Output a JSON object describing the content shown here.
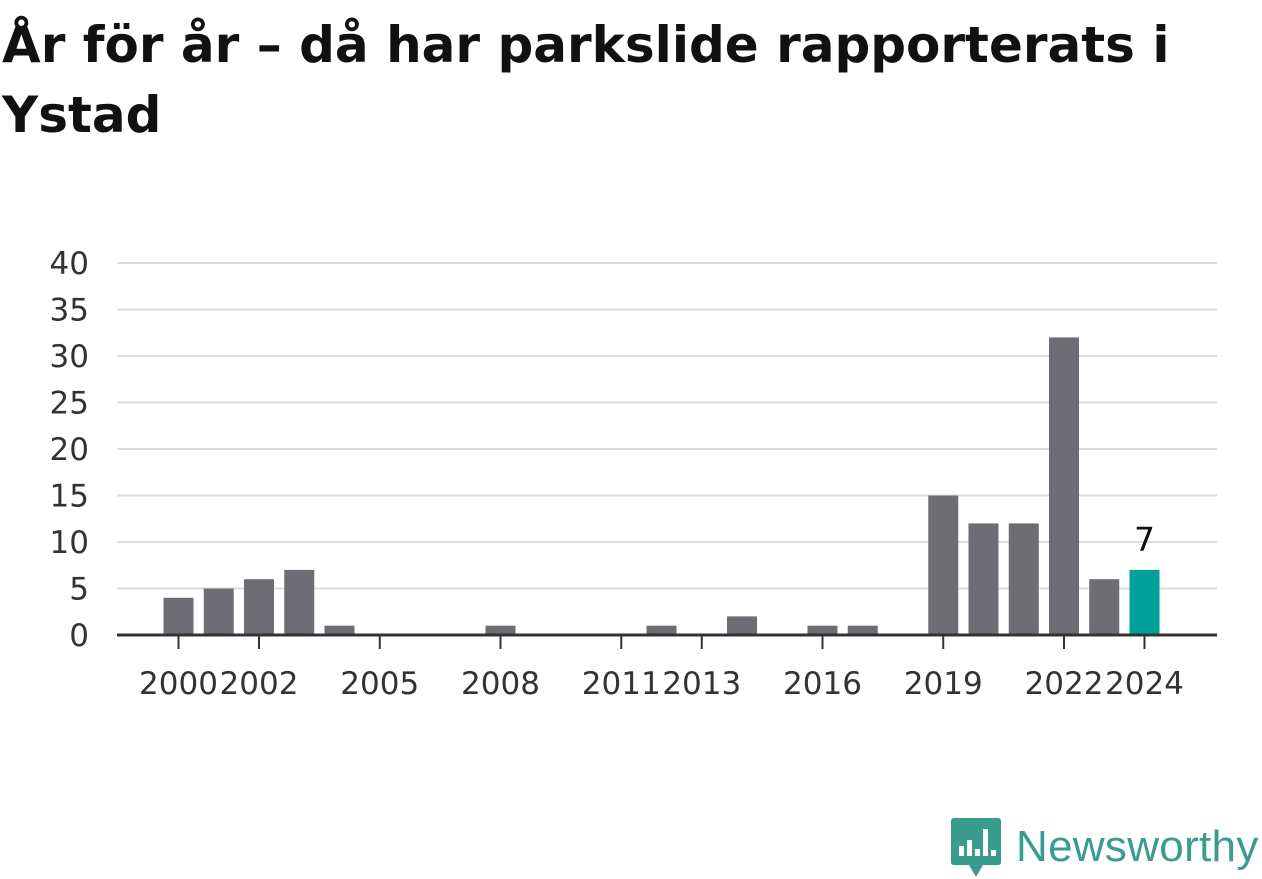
{
  "title": "År för år – då har parkslide rapporterats i Ystad",
  "brand": "Newsworthy",
  "colors": {
    "bar": "#6e6d73",
    "highlight": "#00a199",
    "grid": "#dddddd",
    "axis": "#333333",
    "text": "#333333",
    "brand": "#3a9c8f"
  },
  "chart_data": {
    "type": "bar",
    "title": "År för år – då har parkslide rapporterats i Ystad",
    "xlabel": "",
    "ylabel": "",
    "ylim": [
      0,
      40
    ],
    "yticks": [
      0,
      5,
      10,
      15,
      20,
      25,
      30,
      35,
      40
    ],
    "grid": true,
    "categories": [
      2000,
      2001,
      2002,
      2003,
      2004,
      2005,
      2006,
      2007,
      2008,
      2009,
      2010,
      2011,
      2012,
      2013,
      2014,
      2015,
      2016,
      2017,
      2018,
      2019,
      2020,
      2021,
      2022,
      2023,
      2024
    ],
    "values": [
      4,
      5,
      6,
      7,
      1,
      0,
      0,
      0,
      1,
      0,
      0,
      0,
      1,
      0,
      2,
      0,
      1,
      1,
      0,
      15,
      12,
      12,
      32,
      6,
      7
    ],
    "xtick_labels": [
      "2000",
      "2002",
      "2005",
      "2008",
      "2011",
      "2013",
      "2016",
      "2019",
      "2022",
      "2024"
    ],
    "highlight": {
      "category": 2024,
      "label": "7"
    }
  }
}
